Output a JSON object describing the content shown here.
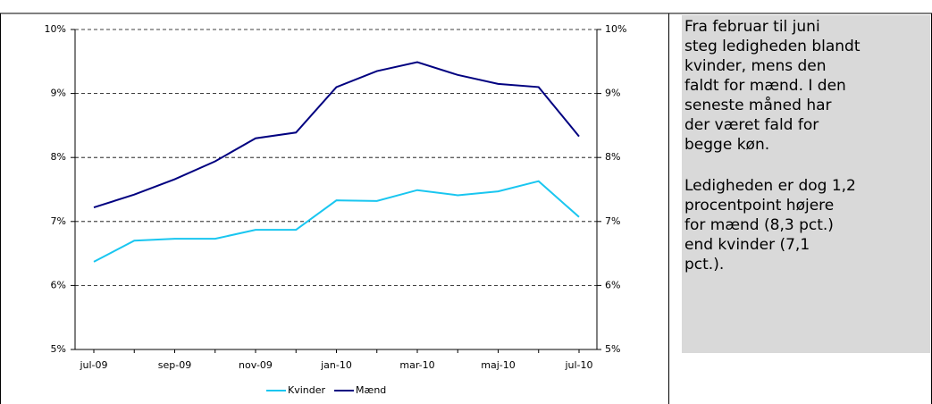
{
  "chart_data": {
    "type": "line",
    "categories": [
      "jul-09",
      null,
      "sep-09",
      null,
      "nov-09",
      null,
      "jan-10",
      null,
      "mar-10",
      null,
      "maj-10",
      null,
      "jul-10"
    ],
    "series": [
      {
        "name": "Kvinder",
        "color": "#19c6f0",
        "values": [
          6.37,
          6.7,
          6.73,
          6.73,
          6.87,
          6.87,
          7.33,
          7.32,
          7.49,
          7.41,
          7.47,
          7.63,
          7.07
        ]
      },
      {
        "name": "Mænd",
        "color": "#000080",
        "values": [
          7.22,
          7.42,
          7.66,
          7.94,
          8.3,
          8.39,
          9.1,
          9.35,
          9.49,
          9.29,
          9.15,
          9.1,
          8.33
        ]
      }
    ],
    "ylim": [
      5,
      10
    ],
    "yticks": [
      {
        "value": 5,
        "label": "5%"
      },
      {
        "value": 6,
        "label": "6%"
      },
      {
        "value": 7,
        "label": "7%"
      },
      {
        "value": 8,
        "label": "8%"
      },
      {
        "value": 9,
        "label": "9%"
      },
      {
        "value": 10,
        "label": "10%"
      }
    ],
    "y2lim": [
      5,
      10
    ],
    "y2ticks": [
      {
        "value": 5,
        "label": "5%"
      },
      {
        "value": 6,
        "label": "6%"
      },
      {
        "value": 7,
        "label": "7%"
      },
      {
        "value": 8,
        "label": "8%"
      },
      {
        "value": 9,
        "label": "9%"
      },
      {
        "value": 10,
        "label": "10%"
      }
    ],
    "grid": true,
    "legend": "bottom"
  },
  "note": {
    "paragraphs": [
      [
        "Fra februar til juni",
        "steg ledigheden blandt",
        "kvinder, mens den",
        "faldt for mænd. I den",
        "seneste måned har",
        "der været fald for",
        "begge køn."
      ],
      [
        "Ledigheden er dog 1,2",
        "procentpoint højere",
        "for mænd (8,3 pct.)",
        "end kvinder (7,1",
        "pct.)."
      ]
    ]
  }
}
